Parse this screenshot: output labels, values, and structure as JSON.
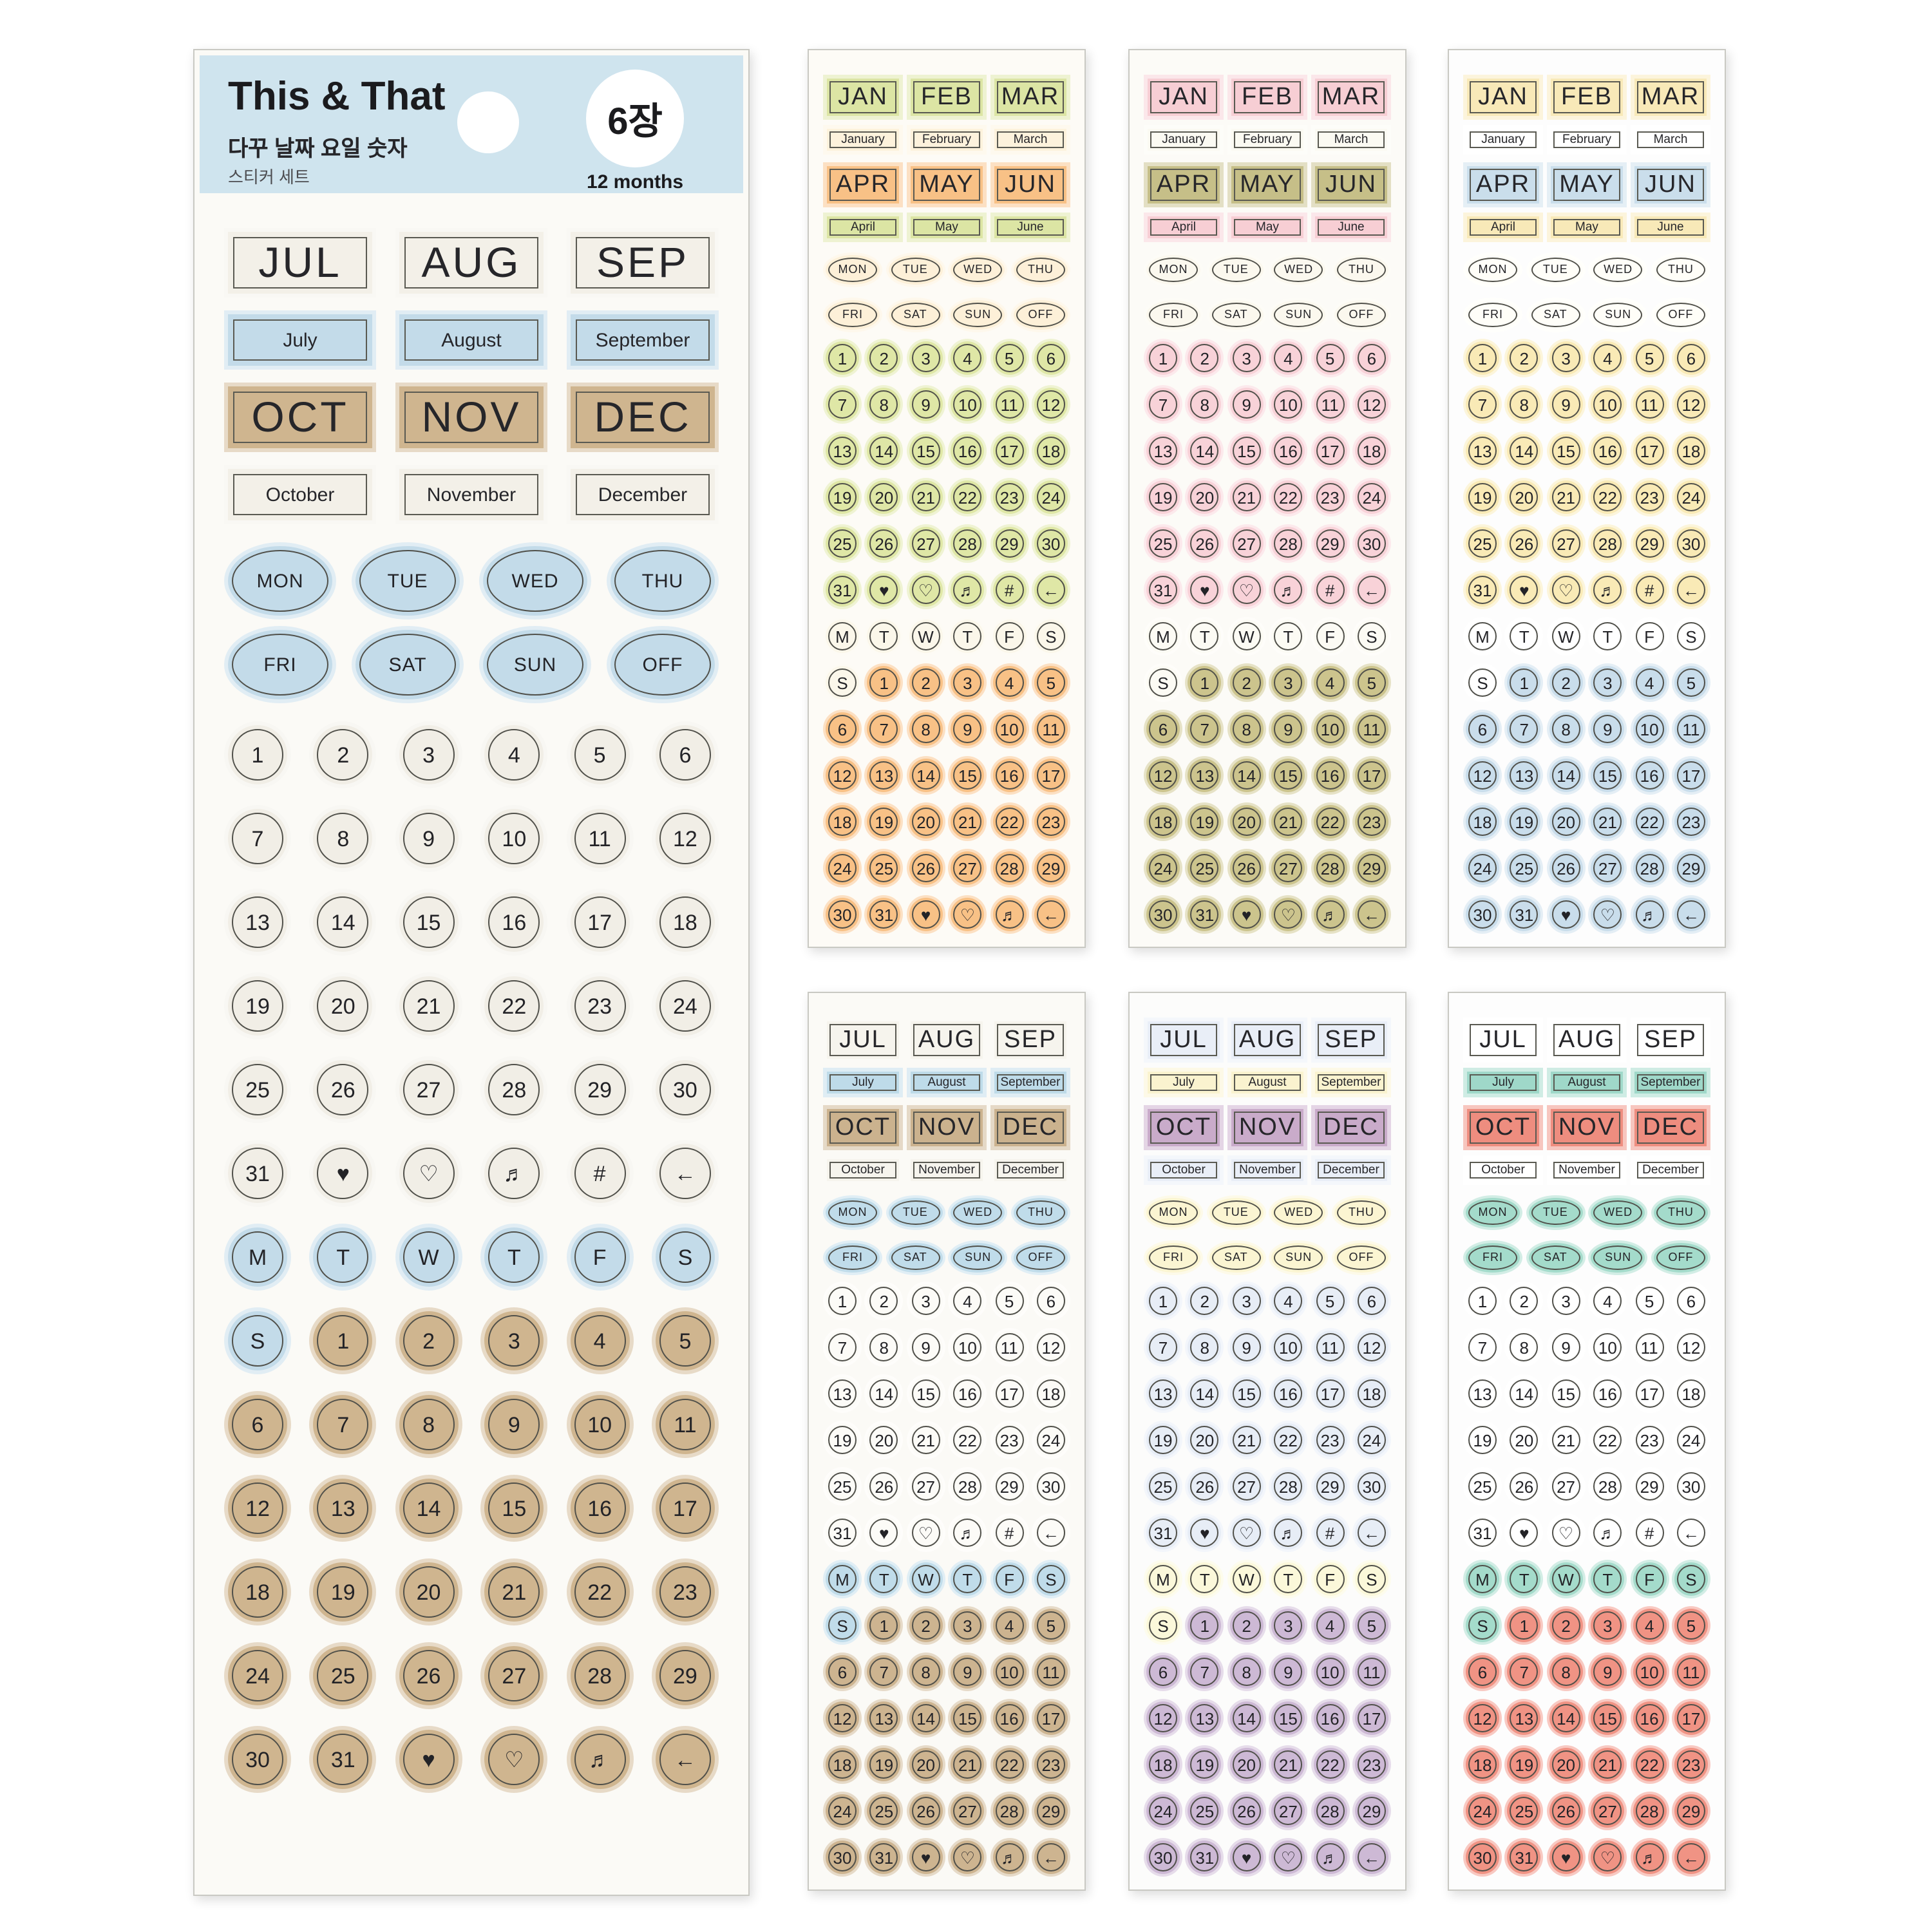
{
  "product": {
    "title": "This & That",
    "subtitle_kr": "다꾸 날짜 요일 숫자",
    "series_kr": "스티커 세트",
    "sheet_count_badge": "6장",
    "badge_caption": "12 months"
  },
  "symbols": {
    "heart_filled": "♥",
    "heart_outline": "♡",
    "music_note": "♬",
    "hash": "#",
    "arrow_left": "←"
  },
  "month_sets": {
    "first_half": {
      "abbr1": [
        "JAN",
        "FEB",
        "MAR"
      ],
      "names1": [
        "January",
        "February",
        "March"
      ],
      "abbr2": [
        "APR",
        "MAY",
        "JUN"
      ],
      "names2": [
        "April",
        "May",
        "June"
      ]
    },
    "second_half": {
      "abbr1": [
        "JUL",
        "AUG",
        "SEP"
      ],
      "names1": [
        "July",
        "August",
        "September"
      ],
      "abbr2": [
        "OCT",
        "NOV",
        "DEC"
      ],
      "names2": [
        "October",
        "November",
        "December"
      ]
    }
  },
  "grid": {
    "day_oval_rows": [
      [
        "MON",
        "TUE",
        "WED",
        "THU"
      ],
      [
        "FRI",
        "SAT",
        "SUN",
        "OFF"
      ]
    ],
    "number_rows": [
      [
        "1",
        "2",
        "3",
        "4",
        "5",
        "6"
      ],
      [
        "7",
        "8",
        "9",
        "10",
        "11",
        "12"
      ],
      [
        "13",
        "14",
        "15",
        "16",
        "17",
        "18"
      ],
      [
        "19",
        "20",
        "21",
        "22",
        "23",
        "24"
      ],
      [
        "25",
        "26",
        "27",
        "28",
        "29",
        "30"
      ],
      [
        "31",
        "♥",
        "♡",
        "♬",
        "#",
        "←"
      ]
    ],
    "weekday_letter_row": [
      "M",
      "T",
      "W",
      "T",
      "F",
      "S"
    ],
    "tail_rows": [
      [
        "S",
        "1",
        "2",
        "3",
        "4",
        "5"
      ],
      [
        "6",
        "7",
        "8",
        "9",
        "10",
        "11"
      ],
      [
        "12",
        "13",
        "14",
        "15",
        "16",
        "17"
      ],
      [
        "18",
        "19",
        "20",
        "21",
        "22",
        "23"
      ],
      [
        "24",
        "25",
        "26",
        "27",
        "28",
        "29"
      ],
      [
        "30",
        "31",
        "♥",
        "♡",
        "♬",
        "←"
      ]
    ]
  },
  "large_sheet": {
    "name": "large-sheet",
    "month_set": "second_half",
    "palette": {
      "sheet_bg": "#fbfaf6",
      "header": "#cfe4ee",
      "big1": "#f3f0e8",
      "name1": "#c3dbe9",
      "big2": "#cfb58f",
      "name2": "#f3f0e8",
      "oval": "#c3dbe9",
      "num": "#f1eee6",
      "letter": "#c3dbe9",
      "tail": "#cfb58f"
    }
  },
  "small_sheets": [
    {
      "name": "sheet-1-green-orange",
      "month_set": "first_half",
      "palette": {
        "sheet_bg": "#fdfbf6",
        "big1": "#dce5a4",
        "name1": "#fdf2dc",
        "big2": "#f8c186",
        "name2": "#dce5a4",
        "oval": "#fdf0d8",
        "num": "#dfe7a6",
        "letter": "#fbf7ea",
        "tail": "#f8c186"
      }
    },
    {
      "name": "sheet-2-pink-olive",
      "month_set": "first_half",
      "palette": {
        "sheet_bg": "#fcfbf7",
        "big1": "#f7ced4",
        "name1": "#fbfaf2",
        "big2": "#c6bf88",
        "name2": "#f7ced4",
        "oval": "#fbf8ee",
        "num": "#f8d2d8",
        "letter": "#fcfbf4",
        "tail": "#ccc48d"
      }
    },
    {
      "name": "sheet-3-yellow-blue",
      "month_set": "first_half",
      "palette": {
        "sheet_bg": "#fdfdfd",
        "big1": "#f8e9b8",
        "name1": "#ffffff",
        "big2": "#cadeeb",
        "name2": "#f8e9b8",
        "oval": "#fffef8",
        "num": "#f9eab6",
        "letter": "#ffffff",
        "tail": "#c9ddeb"
      }
    },
    {
      "name": "sheet-4-blue-tan",
      "month_set": "second_half",
      "palette": {
        "sheet_bg": "#fbfaf6",
        "big1": "#f6f4ed",
        "name1": "#bedbe9",
        "big2": "#cbb28e",
        "name2": "#f6f4ed",
        "oval": "#c0dcea",
        "num": "#fcfbf7",
        "letter": "#c0dcea",
        "tail": "#cdb490"
      }
    },
    {
      "name": "sheet-5-yellow-purple",
      "month_set": "second_half",
      "palette": {
        "sheet_bg": "#fcfcfb",
        "big1": "#e9eef7",
        "name1": "#faf3cf",
        "big2": "#c9abca",
        "name2": "#e9eef7",
        "oval": "#fbf5d2",
        "num": "#e7edf6",
        "letter": "#fbf8da",
        "tail": "#cdb9d5"
      }
    },
    {
      "name": "sheet-6-teal-coral",
      "month_set": "second_half",
      "palette": {
        "sheet_bg": "#fdfdfd",
        "big1": "#ffffff",
        "name1": "#9fd8c9",
        "big2": "#ee8d7f",
        "name2": "#ffffff",
        "oval": "#a4dbcb",
        "num": "#ffffff",
        "letter": "#a4dbcb",
        "tail": "#f09384"
      }
    }
  ]
}
